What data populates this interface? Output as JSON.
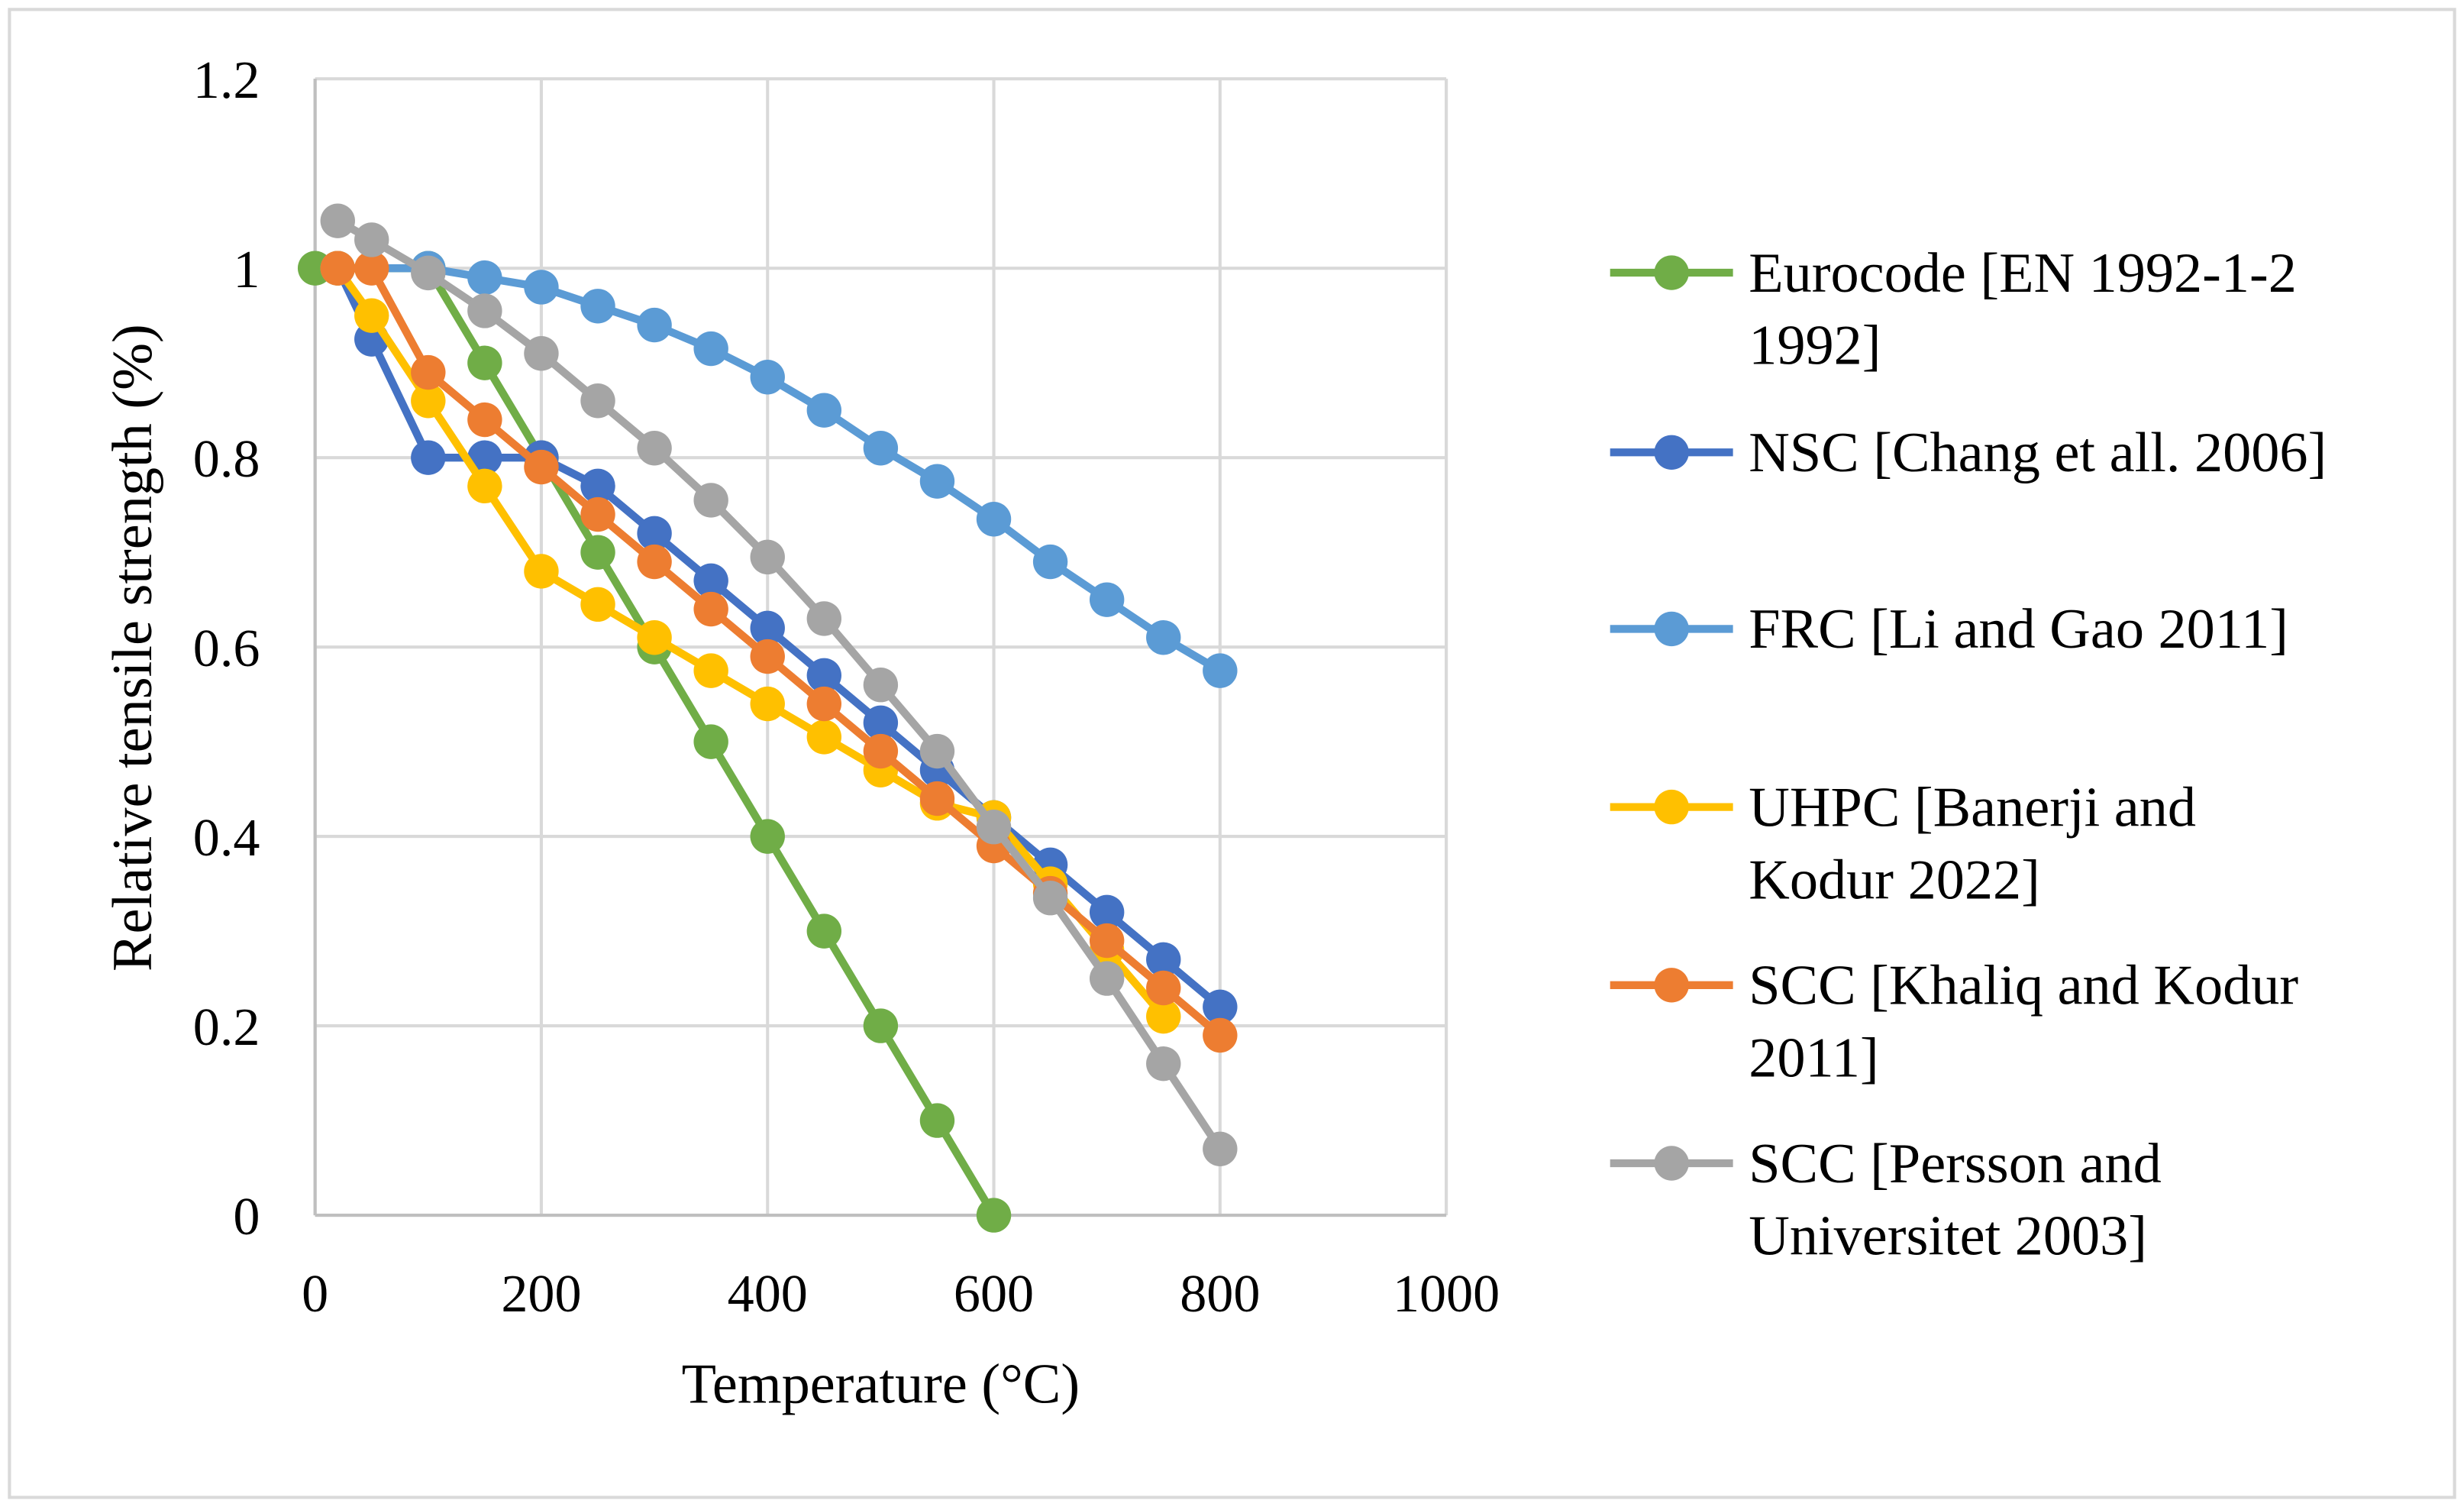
{
  "chart_data": {
    "type": "line",
    "title": "",
    "xlabel": "Temperature (°C)",
    "ylabel": "Relative tensile strength (%)",
    "xlim": [
      0,
      1000
    ],
    "ylim": [
      0,
      1.2
    ],
    "xticks": [
      "0",
      "200",
      "400",
      "600",
      "800",
      "1000"
    ],
    "yticks": [
      "0",
      "0.2",
      "0.4",
      "0.6",
      "0.8",
      "1",
      "1.2"
    ],
    "grid": true,
    "legend_position": "right",
    "series": [
      {
        "name": "Eurocode [EN 1992-1-2 1992]",
        "legend_lines": [
          "Eurocode [EN 1992-1-2",
          "1992]"
        ],
        "color": "#70AD47",
        "x": [
          0,
          100,
          150,
          200,
          250,
          300,
          350,
          400,
          450,
          500,
          550,
          600
        ],
        "y": [
          1,
          1,
          0.9,
          0.8,
          0.7,
          0.6,
          0.5,
          0.4,
          0.3,
          0.2,
          0.1,
          0
        ]
      },
      {
        "name": "NSC [Chang et all. 2006]",
        "legend_lines": [
          "NSC [Chang et all. 2006]"
        ],
        "color": "#4472C4",
        "x": [
          20,
          50,
          100,
          150,
          200,
          250,
          300,
          350,
          400,
          450,
          500,
          550,
          600,
          650,
          700,
          750,
          800
        ],
        "y": [
          1,
          0.925,
          0.8,
          0.8,
          0.8,
          0.77,
          0.72,
          0.67,
          0.62,
          0.57,
          0.52,
          0.47,
          0.42,
          0.37,
          0.32,
          0.27,
          0.22
        ]
      },
      {
        "name": "FRC [Li and Gao 2011]",
        "legend_lines": [
          "FRC [Li and Gao 2011]"
        ],
        "color": "#5B9BD5",
        "x": [
          20,
          100,
          150,
          200,
          250,
          300,
          350,
          400,
          450,
          500,
          550,
          600,
          650,
          700,
          750,
          800
        ],
        "y": [
          1,
          1,
          0.99,
          0.98,
          0.96,
          0.94,
          0.915,
          0.885,
          0.85,
          0.81,
          0.775,
          0.735,
          0.69,
          0.65,
          0.61,
          0.575
        ]
      },
      {
        "name": "UHPC [Banerji and Kodur 2022]",
        "legend_lines": [
          "UHPC [Banerji and",
          "Kodur 2022]"
        ],
        "color": "#FFC000",
        "x": [
          20,
          50,
          100,
          150,
          200,
          250,
          300,
          350,
          400,
          450,
          500,
          550,
          600,
          650,
          700,
          750
        ],
        "y": [
          1,
          0.95,
          0.86,
          0.77,
          0.68,
          0.645,
          0.61,
          0.575,
          0.54,
          0.505,
          0.47,
          0.435,
          0.42,
          0.35,
          0.28,
          0.21
        ]
      },
      {
        "name": "SCC [Khaliq and Kodur 2011]",
        "legend_lines": [
          "SCC [Khaliq and Kodur",
          "2011]"
        ],
        "color": "#ED7D31",
        "x": [
          20,
          50,
          100,
          150,
          200,
          250,
          300,
          350,
          400,
          450,
          500,
          550,
          600,
          650,
          700,
          750,
          800
        ],
        "y": [
          1,
          1,
          0.89,
          0.84,
          0.79,
          0.74,
          0.69,
          0.64,
          0.59,
          0.54,
          0.49,
          0.44,
          0.39,
          0.34,
          0.29,
          0.24,
          0.19
        ]
      },
      {
        "name": "SCC [Persson and Universitet 2003]",
        "legend_lines": [
          "SCC [Persson and",
          "Universitet 2003]"
        ],
        "color": "#A5A5A5",
        "x": [
          20,
          50,
          100,
          150,
          200,
          250,
          300,
          350,
          400,
          450,
          500,
          550,
          600,
          650,
          700,
          750,
          800
        ],
        "y": [
          1.05,
          1.03,
          0.995,
          0.955,
          0.91,
          0.86,
          0.81,
          0.755,
          0.695,
          0.63,
          0.56,
          0.49,
          0.41,
          0.335,
          0.25,
          0.16,
          0.07
        ]
      }
    ]
  }
}
